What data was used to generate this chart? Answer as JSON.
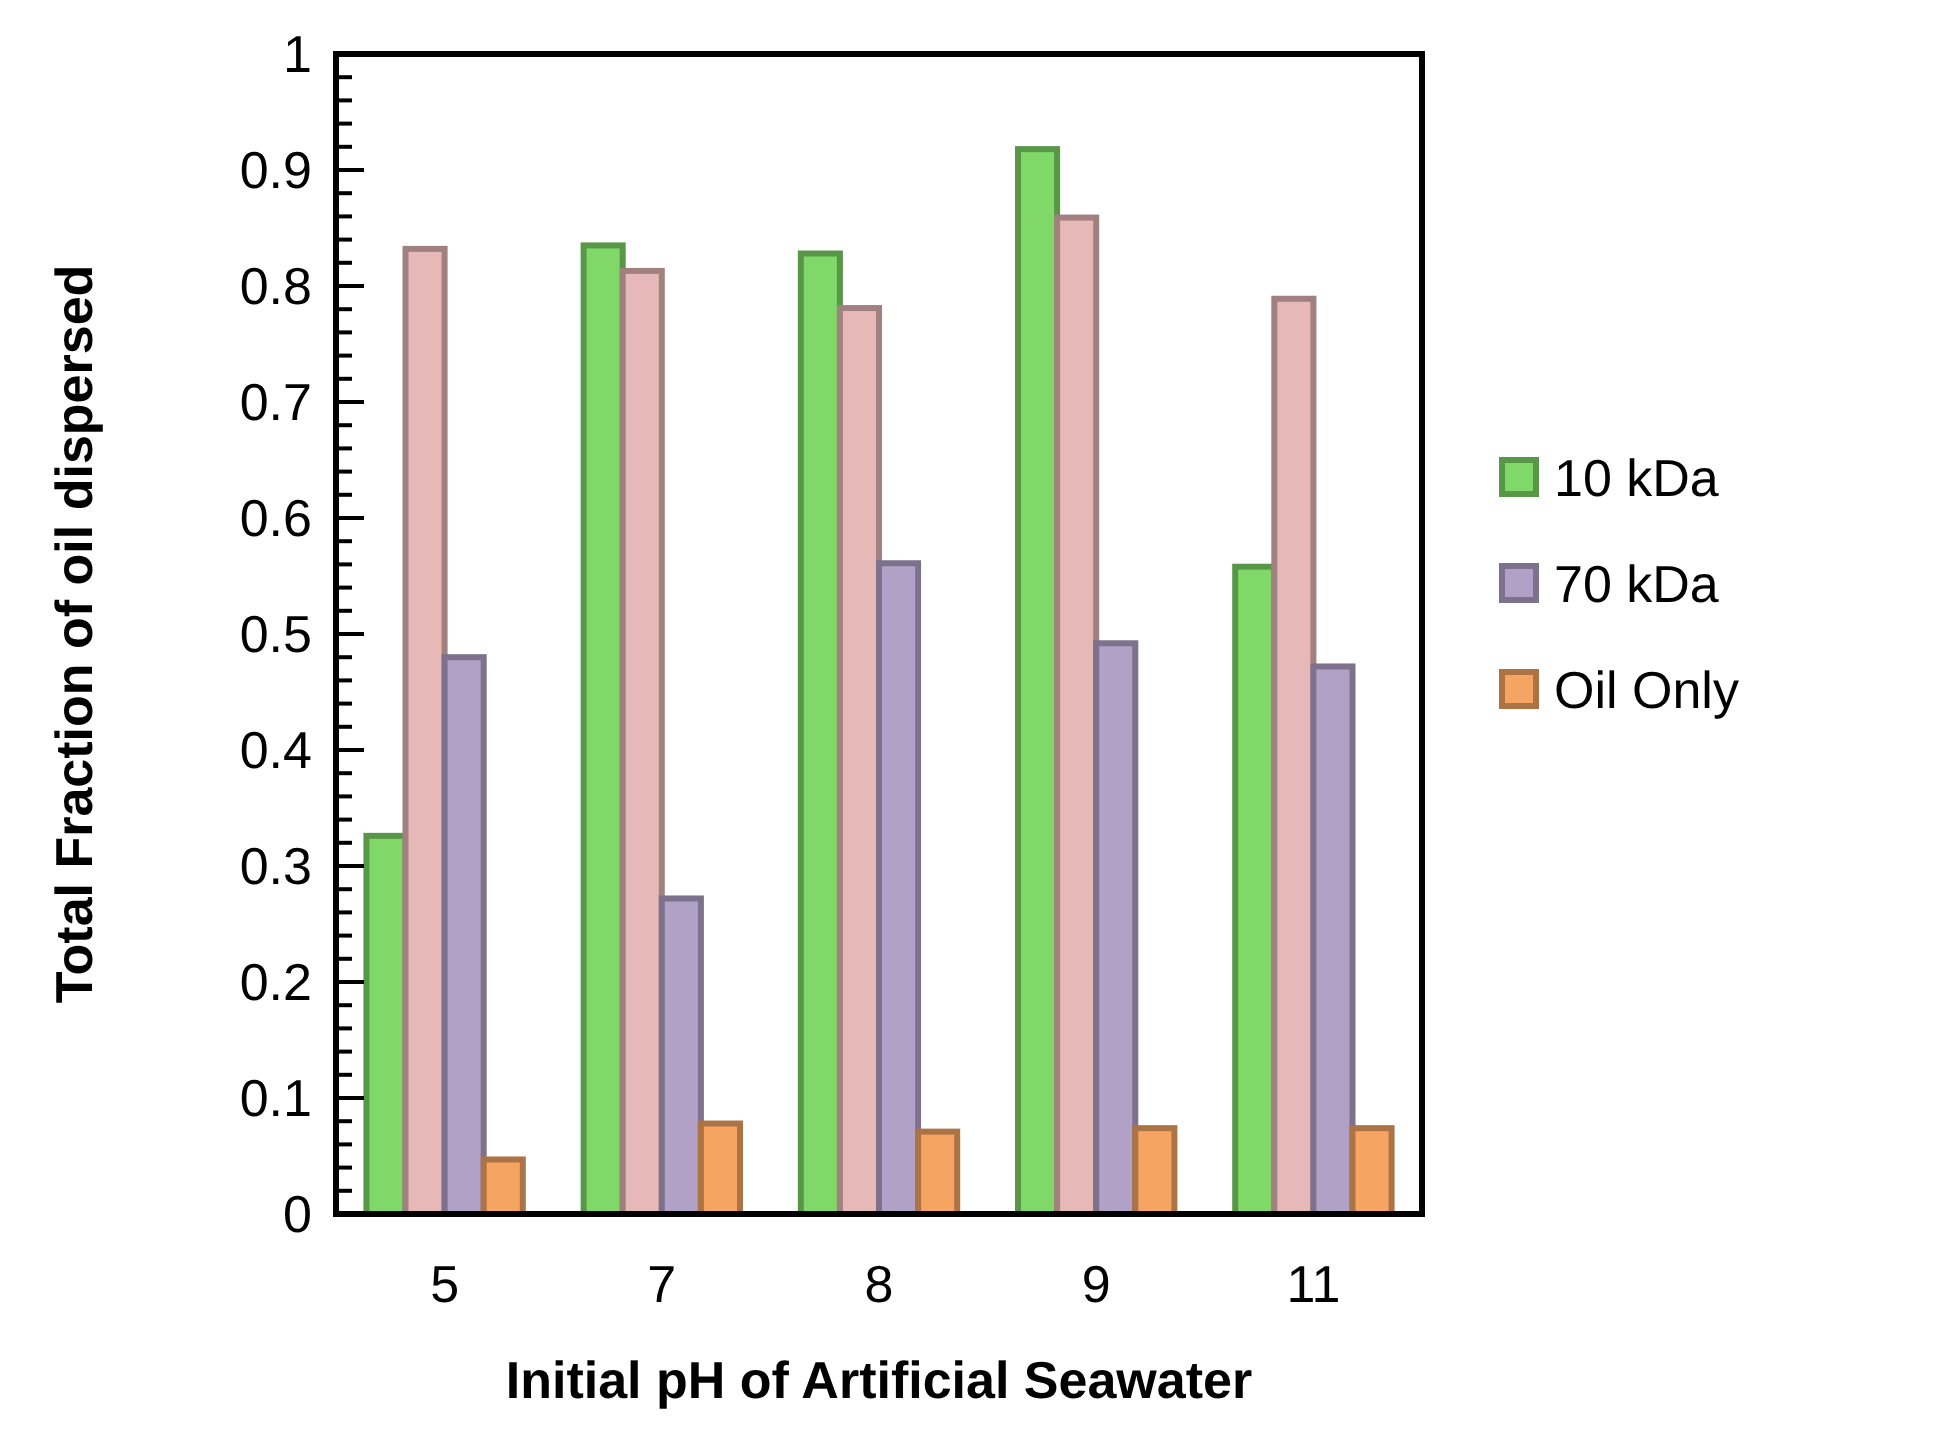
{
  "chart_data": {
    "type": "bar",
    "xlabel": "Initial pH of Artificial Seawater",
    "ylabel": "Total Fraction of oil dispersed",
    "categories": [
      "5",
      "7",
      "8",
      "9",
      "11"
    ],
    "series": [
      {
        "name": "10 kDa",
        "color": "#7fd867",
        "values": [
          0.326,
          0.835,
          0.828,
          0.918,
          0.558
        ]
      },
      {
        "color": "#e6b8b7",
        "values": [
          0.832,
          0.813,
          0.781,
          0.859,
          0.789
        ]
      },
      {
        "name": "70 kDa",
        "color": "#b2a1c7",
        "values": [
          0.48,
          0.272,
          0.561,
          0.492,
          0.472
        ]
      },
      {
        "name": "Oil Only",
        "color": "#f6a462",
        "values": [
          0.047,
          0.078,
          0.071,
          0.074,
          0.074
        ]
      }
    ],
    "ylim": [
      0,
      1
    ],
    "yticks": [
      0,
      {
        "value": 0.02,
        "label": null
      },
      {
        "value": 0.04,
        "label": null
      },
      {
        "value": 0.06,
        "label": null
      },
      {
        "value": 0.08,
        "label": null
      },
      0.1,
      {
        "value": 0.12,
        "label": null
      },
      {
        "value": 0.14,
        "label": null
      },
      {
        "value": 0.16,
        "label": null
      },
      {
        "value": 0.18,
        "label": null
      },
      0.2,
      {
        "value": 0.22,
        "label": null
      },
      {
        "value": 0.24,
        "label": null
      },
      {
        "value": 0.26,
        "label": null
      },
      {
        "value": 0.28,
        "label": null
      },
      0.3,
      {
        "value": 0.32,
        "label": null
      },
      {
        "value": 0.34,
        "label": null
      },
      {
        "value": 0.36,
        "label": null
      },
      {
        "value": 0.38,
        "label": null
      },
      0.4,
      {
        "value": 0.42,
        "label": null
      },
      {
        "value": 0.44,
        "label": null
      },
      {
        "value": 0.46,
        "label": null
      },
      {
        "value": 0.48,
        "label": null
      },
      0.5,
      {
        "value": 0.52,
        "label": null
      },
      {
        "value": 0.54,
        "label": null
      },
      {
        "value": 0.56,
        "label": null
      },
      {
        "value": 0.58,
        "label": null
      },
      0.6,
      {
        "value": 0.62,
        "label": null
      },
      {
        "value": 0.64,
        "label": null
      },
      {
        "value": 0.66,
        "label": null
      },
      {
        "value": 0.68,
        "label": null
      },
      0.7,
      {
        "value": 0.72,
        "label": null
      },
      {
        "value": 0.74,
        "label": null
      },
      {
        "value": 0.76,
        "label": null
      },
      {
        "value": 0.78,
        "label": null
      },
      0.8,
      {
        "value": 0.82,
        "label": null
      },
      {
        "value": 0.84,
        "label": null
      },
      {
        "value": 0.86,
        "label": null
      },
      {
        "value": 0.88,
        "label": null
      },
      0.9,
      {
        "value": 0.92,
        "label": null
      },
      {
        "value": 0.94,
        "label": null
      },
      {
        "value": 0.96,
        "label": null
      },
      {
        "value": 0.98,
        "label": null
      },
      1
    ],
    "grid": false,
    "legend": "right"
  }
}
